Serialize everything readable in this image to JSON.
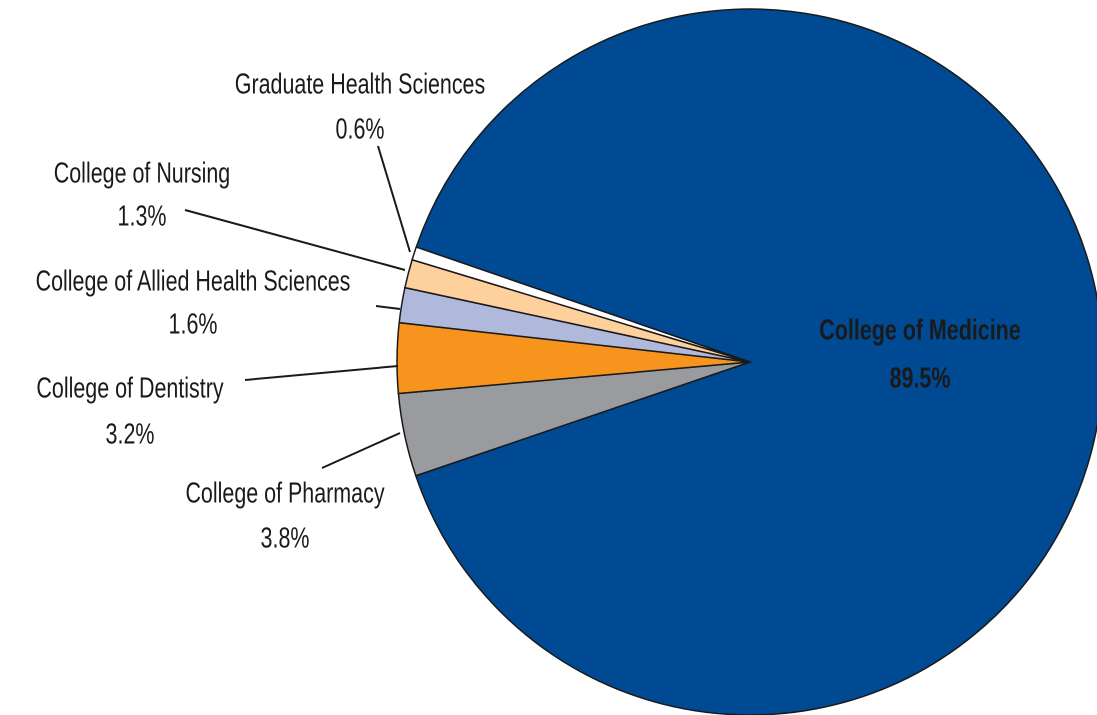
{
  "chart_data": {
    "type": "pie",
    "categories": [
      "College of Medicine",
      "College of Pharmacy",
      "College of Dentistry",
      "College of Allied Health Sciences",
      "College of Nursing",
      "Graduate Health Sciences"
    ],
    "values": [
      89.5,
      3.8,
      3.2,
      1.6,
      1.3,
      0.6
    ],
    "value_labels": [
      "89.5%",
      "3.8%",
      "3.2%",
      "1.6%",
      "1.3%",
      "0.6%"
    ],
    "colors": [
      "#004a93",
      "#9a9b9e",
      "#f7941d",
      "#b0b8dc",
      "#fdd09c",
      "#ffffff"
    ]
  }
}
